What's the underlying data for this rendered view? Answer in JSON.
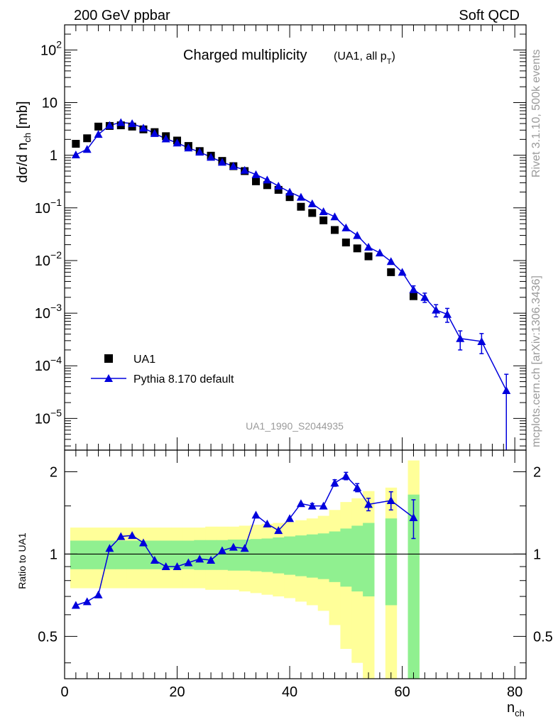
{
  "header": {
    "left": "200 GeV ppbar",
    "right": "Soft QCD"
  },
  "side_text": {
    "top": "Rivet 3.1.10,  500k events",
    "bottom": "mcplots.cern.ch [arXiv:1306.3436]"
  },
  "colors": {
    "data": "#000000",
    "mc": "#0000dd",
    "band_inner": "#90f090",
    "band_outer": "#ffff99"
  },
  "chart_data": [
    {
      "type": "scatter",
      "title": "Charged multiplicity",
      "title_suffix": "(UA1, all p",
      "title_suffix_sub": "T",
      "title_suffix_end": ")",
      "ylabel": "dσ/d n",
      "ylabel_sub": "ch",
      "ylabel_end": " [mb]",
      "yscale": "log",
      "xlim": [
        0,
        82
      ],
      "ylim": [
        2.5e-06,
        300
      ],
      "watermark": "UA1_1990_S2044935",
      "legend": {
        "position": "bottom-left",
        "entries": [
          "UA1",
          "Pythia 8.170 default"
        ]
      },
      "y_ticks": [
        {
          "value": 1e-05,
          "base": "10",
          "exp": "−5"
        },
        {
          "value": 0.0001,
          "base": "10",
          "exp": "−4"
        },
        {
          "value": 0.001,
          "base": "10",
          "exp": "−3"
        },
        {
          "value": 0.01,
          "base": "10",
          "exp": "−2"
        },
        {
          "value": 0.1,
          "base": "10",
          "exp": "−1"
        },
        {
          "value": 1,
          "base": "1",
          "exp": ""
        },
        {
          "value": 10,
          "base": "10",
          "exp": ""
        },
        {
          "value": 100,
          "base": "10",
          "exp": "2"
        }
      ],
      "series": [
        {
          "name": "UA1",
          "x": [
            2,
            4,
            6,
            8,
            10,
            12,
            14,
            16,
            18,
            20,
            22,
            24,
            26,
            28,
            30,
            32,
            34,
            36,
            38,
            40,
            42,
            44,
            46,
            48,
            50,
            52,
            54,
            58,
            62
          ],
          "y": [
            1.65,
            2.1,
            3.5,
            3.6,
            3.7,
            3.5,
            3.1,
            2.75,
            2.3,
            1.9,
            1.5,
            1.2,
            0.98,
            0.78,
            0.62,
            0.5,
            0.32,
            0.27,
            0.22,
            0.16,
            0.105,
            0.08,
            0.058,
            0.038,
            0.022,
            0.017,
            0.012,
            0.006,
            0.0021
          ]
        },
        {
          "name": "Pythia 8.170 default",
          "x": [
            2,
            4,
            6,
            8,
            10,
            12,
            14,
            16,
            18,
            20,
            22,
            24,
            26,
            28,
            30,
            32,
            34,
            36,
            38,
            40,
            42,
            44,
            46,
            48,
            50,
            52,
            54,
            56,
            58,
            60,
            62,
            64,
            66,
            68,
            70.3,
            74.1,
            78.5
          ],
          "y": [
            1.02,
            1.3,
            2.5,
            3.7,
            4.2,
            4.0,
            3.3,
            2.6,
            2.05,
            1.72,
            1.38,
            1.15,
            0.92,
            0.74,
            0.62,
            0.52,
            0.43,
            0.34,
            0.26,
            0.2,
            0.16,
            0.12,
            0.085,
            0.068,
            0.042,
            0.03,
            0.018,
            0.014,
            0.0096,
            0.006,
            0.0028,
            0.002,
            0.00115,
            0.00095,
            0.00033,
            0.00029,
            3.4e-05
          ],
          "err": [
            0,
            0,
            0,
            0,
            0,
            0,
            0,
            0,
            0,
            0,
            0,
            0,
            0,
            0,
            0,
            0,
            0,
            0,
            0,
            0,
            0,
            0,
            0,
            0,
            0,
            0,
            0,
            0,
            0,
            0,
            0.0005,
            0.0004,
            0.0003,
            0.00028,
            0.00013,
            0.00012,
            3.5e-05
          ]
        }
      ]
    },
    {
      "type": "line",
      "ylabel": "Ratio to UA1",
      "xlabel": "n",
      "xlabel_sub": "ch",
      "yscale": "log",
      "xlim": [
        0,
        82
      ],
      "ylim": [
        0.35,
        2.4
      ],
      "x_ticks": [
        0,
        20,
        40,
        60,
        80
      ],
      "y_ticks": [
        {
          "value": 0.5,
          "label": "0.5"
        },
        {
          "value": 1,
          "label": "1"
        },
        {
          "value": 2,
          "label": "2"
        }
      ],
      "reference_line": 1,
      "uncertainty_bands": {
        "x": [
          1,
          3,
          5,
          7,
          9,
          11,
          13,
          15,
          17,
          19,
          21,
          23,
          25,
          27,
          29,
          31,
          33,
          35,
          37,
          39,
          41,
          43,
          45,
          47,
          49,
          51,
          53,
          57,
          61
        ],
        "width": 2,
        "inner_half": [
          0.12,
          0.12,
          0.12,
          0.12,
          0.12,
          0.12,
          0.12,
          0.12,
          0.12,
          0.12,
          0.12,
          0.125,
          0.125,
          0.125,
          0.13,
          0.13,
          0.135,
          0.14,
          0.15,
          0.16,
          0.17,
          0.18,
          0.19,
          0.21,
          0.24,
          0.27,
          0.3,
          0.35,
          0.65
        ],
        "outer_half": [
          0.25,
          0.25,
          0.25,
          0.25,
          0.25,
          0.25,
          0.25,
          0.25,
          0.25,
          0.25,
          0.25,
          0.25,
          0.26,
          0.26,
          0.26,
          0.27,
          0.28,
          0.29,
          0.3,
          0.31,
          0.33,
          0.35,
          0.38,
          0.45,
          0.55,
          0.6,
          0.7,
          0.75,
          1.2
        ]
      },
      "series": [
        {
          "name": "Pythia 8.170 default",
          "x": [
            2,
            4,
            6,
            8,
            10,
            12,
            14,
            16,
            18,
            20,
            22,
            24,
            26,
            28,
            30,
            32,
            34,
            36,
            38,
            40,
            42,
            44,
            46,
            48,
            50,
            52,
            54,
            58,
            62
          ],
          "y": [
            0.65,
            0.67,
            0.71,
            1.05,
            1.16,
            1.17,
            1.1,
            0.95,
            0.9,
            0.9,
            0.93,
            0.96,
            0.95,
            1.03,
            1.06,
            1.05,
            1.39,
            1.29,
            1.22,
            1.35,
            1.53,
            1.5,
            1.5,
            1.82,
            1.93,
            1.75,
            1.52,
            1.57,
            1.36
          ],
          "err": [
            0,
            0,
            0,
            0,
            0,
            0,
            0,
            0,
            0,
            0,
            0,
            0,
            0,
            0,
            0,
            0,
            0,
            0,
            0,
            0,
            0,
            0.03,
            0,
            0.05,
            0.06,
            0.06,
            0.08,
            0.12,
            0.22
          ]
        }
      ]
    }
  ]
}
